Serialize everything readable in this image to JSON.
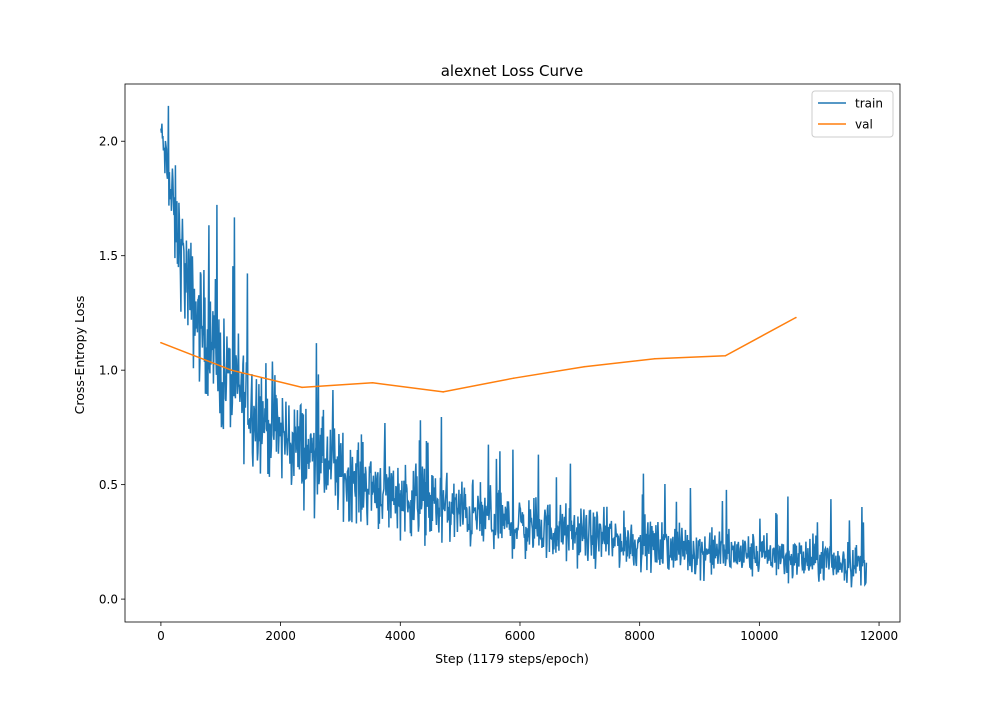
{
  "chart_data": {
    "type": "line",
    "title": "alexnet Loss Curve",
    "xlabel": "Step (1179 steps/epoch)",
    "ylabel": "Cross-Entropy Loss",
    "xlim": [
      -600,
      12350
    ],
    "ylim": [
      -0.1,
      2.25
    ],
    "xticks": [
      0,
      2000,
      4000,
      6000,
      8000,
      10000,
      12000
    ],
    "xtick_labels": [
      "0",
      "2000",
      "4000",
      "6000",
      "8000",
      "10000",
      "12000"
    ],
    "yticks": [
      0.0,
      0.5,
      1.0,
      1.5,
      2.0
    ],
    "ytick_labels": [
      "0.0",
      "0.5",
      "1.0",
      "1.5",
      "2.0"
    ],
    "grid": false,
    "legend_position": "top-right",
    "series": [
      {
        "name": "train",
        "color": "#1f77b4",
        "note": "noisy per-step training loss; envelope summarized as mean trend with spread",
        "x_start": 0,
        "x_end": 11790,
        "trend_x": [
          0,
          200,
          500,
          1000,
          1500,
          2000,
          3000,
          4000,
          5000,
          6000,
          7000,
          8000,
          9000,
          10000,
          11000,
          11790
        ],
        "trend_y": [
          2.05,
          1.7,
          1.3,
          1.0,
          0.85,
          0.72,
          0.55,
          0.45,
          0.38,
          0.32,
          0.28,
          0.24,
          0.21,
          0.19,
          0.17,
          0.15
        ],
        "spread_y": [
          0.08,
          0.3,
          0.35,
          0.35,
          0.33,
          0.3,
          0.25,
          0.22,
          0.2,
          0.18,
          0.16,
          0.15,
          0.14,
          0.13,
          0.13,
          0.12
        ]
      },
      {
        "name": "val",
        "color": "#ff7f0e",
        "x": [
          0,
          1179,
          2358,
          3537,
          4716,
          5895,
          7074,
          8253,
          9432,
          10611
        ],
        "y": [
          1.12,
          1.0,
          0.925,
          0.945,
          0.905,
          0.965,
          1.015,
          1.05,
          1.063,
          1.23
        ]
      }
    ]
  }
}
